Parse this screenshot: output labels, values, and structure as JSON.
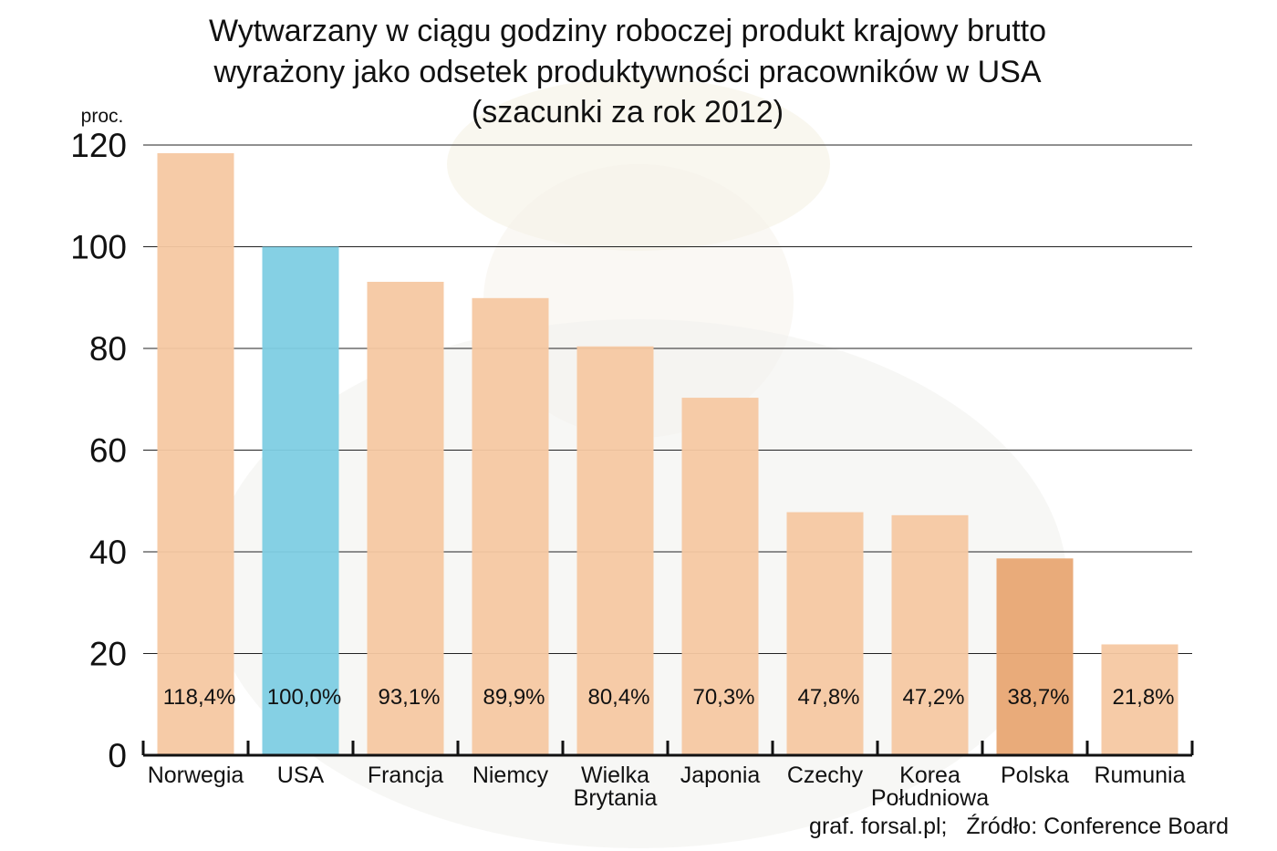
{
  "chart_data": {
    "type": "bar",
    "title_lines": [
      "Wytwarzany w ciągu godziny roboczej produkt krajowy brutto",
      "wyrażony jako odsetek produktywności pracowników w USA",
      "(szacunki za rok 2012)"
    ],
    "y_unit": "proc.",
    "ylim": [
      0,
      120
    ],
    "yticks": [
      0,
      20,
      40,
      60,
      80,
      100,
      120
    ],
    "grid": true,
    "categories": [
      [
        "Norwegia"
      ],
      [
        "USA"
      ],
      [
        "Francja"
      ],
      [
        "Niemcy"
      ],
      [
        "Wielka",
        "Brytania"
      ],
      [
        "Japonia"
      ],
      [
        "Czechy"
      ],
      [
        "Korea",
        "Południowa"
      ],
      [
        "Polska"
      ],
      [
        "Rumunia"
      ]
    ],
    "values": [
      118.4,
      100.0,
      93.1,
      89.9,
      80.4,
      70.3,
      47.8,
      47.2,
      38.7,
      21.8
    ],
    "value_labels": [
      "118,4%",
      "100,0%",
      "93,1%",
      "89,9%",
      "80,4%",
      "70,3%",
      "47,8%",
      "47,2%",
      "38,7%",
      "21,8%"
    ],
    "bar_colors": [
      "#f5c8a2",
      "#7ecde3",
      "#f5c8a2",
      "#f5c8a2",
      "#f5c8a2",
      "#f5c8a2",
      "#f5c8a2",
      "#f5c8a2",
      "#e8a773",
      "#f5c8a2"
    ],
    "source": "graf. forsal.pl;   Źródło: Conference Board"
  }
}
